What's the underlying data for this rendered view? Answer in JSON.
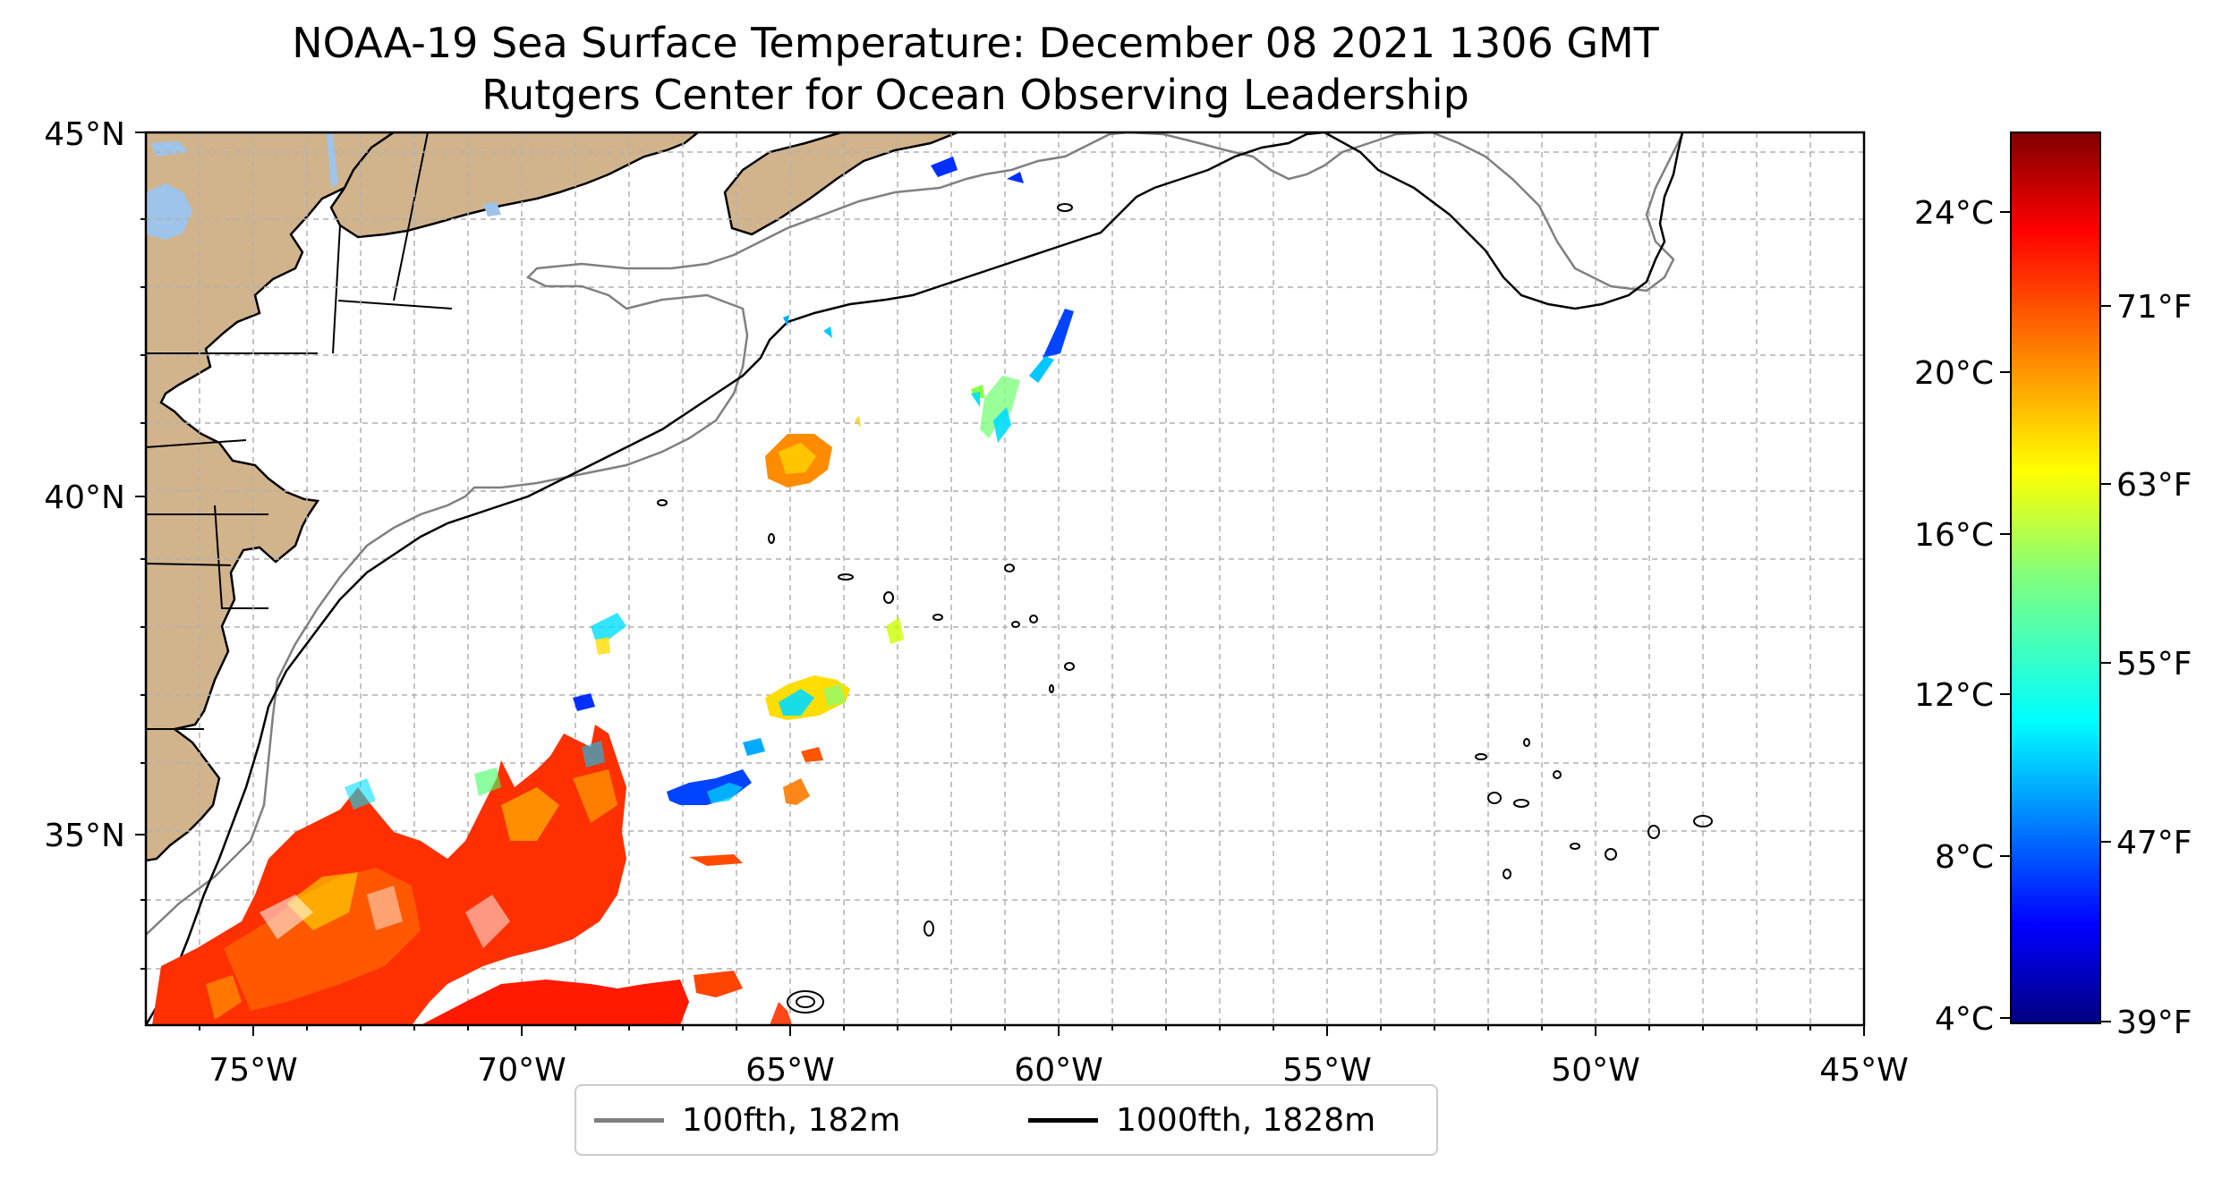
{
  "title": {
    "line1": "NOAA-19 Sea Surface Temperature: December 08 2021 1306 GMT",
    "line2": "Rutgers Center for Ocean Observing Leadership"
  },
  "map": {
    "type": "sea-surface-temperature-map",
    "lon_range": [
      -77,
      -45
    ],
    "lat_range": [
      32.2,
      45
    ],
    "gridlines": true,
    "land_color": "#d2b48c",
    "lake_color": "#9ec4ea",
    "lon_ticks": [
      "75°W",
      "70°W",
      "65°W",
      "60°W",
      "55°W",
      "50°W",
      "45°W"
    ],
    "lat_ticks": [
      "35°N",
      "40°N",
      "45°N"
    ]
  },
  "colorbar": {
    "celsius_ticks": [
      "4°C",
      "8°C",
      "12°C",
      "16°C",
      "20°C",
      "24°C"
    ],
    "fahrenheit_ticks": [
      "39°F",
      "47°F",
      "55°F",
      "63°F",
      "71°F"
    ],
    "colormap": "jet",
    "range_celsius": [
      4,
      26
    ]
  },
  "legend": {
    "items": [
      {
        "label": "100fth, 182m",
        "color": "#808080"
      },
      {
        "label": "1000fth, 1828m",
        "color": "#000000"
      }
    ],
    "placement": "bottom-center"
  }
}
